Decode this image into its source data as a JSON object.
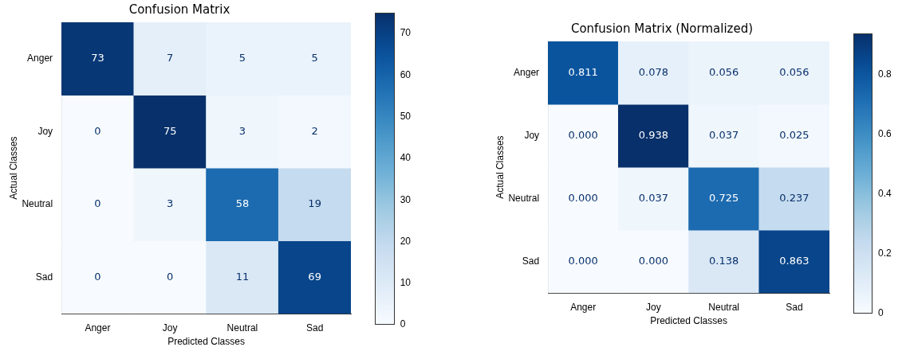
{
  "chart_data": [
    {
      "type": "heatmap",
      "title": "Confusion Matrix",
      "xlabel": "Predicted Classes",
      "ylabel": "Actual Classes",
      "categories": [
        "Anger",
        "Joy",
        "Neutral",
        "Sad"
      ],
      "y_categories": [
        "Anger",
        "Joy",
        "Neutral",
        "Sad"
      ],
      "cells": [
        [
          73,
          7,
          5,
          5
        ],
        [
          0,
          75,
          3,
          2
        ],
        [
          0,
          3,
          58,
          19
        ],
        [
          0,
          0,
          11,
          69
        ]
      ],
      "data_labels": true,
      "clim": [
        0,
        75
      ],
      "cticks": [
        0,
        10,
        20,
        30,
        40,
        50,
        60,
        70
      ]
    },
    {
      "type": "heatmap",
      "title": "Confusion Matrix (Normalized)",
      "xlabel": "Predicted Classes",
      "ylabel": "Actual Classes",
      "categories": [
        "Anger",
        "Joy",
        "Neutral",
        "Sad"
      ],
      "y_categories": [
        "Anger",
        "Joy",
        "Neutral",
        "Sad"
      ],
      "cells": [
        [
          0.811,
          0.078,
          0.056,
          0.056
        ],
        [
          0,
          0.938,
          0.037,
          0.025
        ],
        [
          0,
          0.037,
          0.725,
          0.237
        ],
        [
          0,
          0,
          0.138,
          0.863
        ]
      ],
      "cell_labels": [
        [
          "0.811",
          "0.078",
          "0.056",
          "0.056"
        ],
        [
          "0.000",
          "0.938",
          "0.037",
          "0.025"
        ],
        [
          "0.000",
          "0.037",
          "0.725",
          "0.237"
        ],
        [
          "0.000",
          "0.000",
          "0.138",
          "0.863"
        ]
      ],
      "clim": [
        0,
        0.938
      ],
      "cticks": [
        0,
        0.2,
        0.4,
        0.6,
        0.8
      ]
    }
  ]
}
